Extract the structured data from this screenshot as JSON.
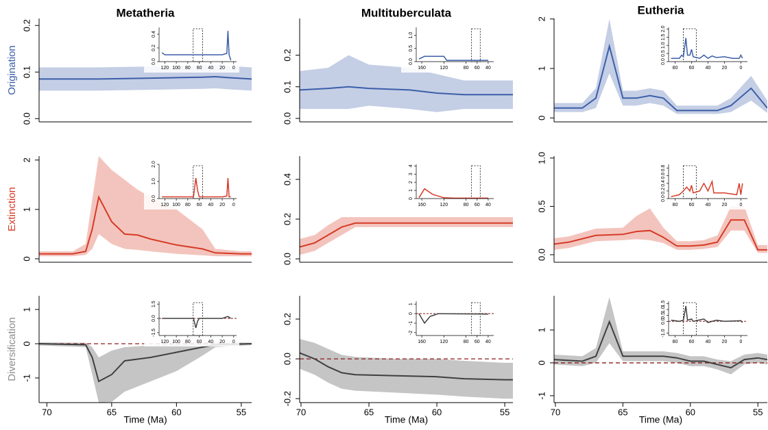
{
  "chart_data": [
    {
      "type": "line",
      "title": "Metatheria",
      "ylabel": "Origination",
      "color": "#3b5ea8",
      "x": [
        70.6,
        68,
        66,
        64,
        62,
        60,
        58,
        57,
        56,
        54.2
      ],
      "values": [
        0.085,
        0.085,
        0.085,
        0.086,
        0.087,
        0.088,
        0.089,
        0.09,
        0.088,
        0.085
      ],
      "lower": [
        0.06,
        0.06,
        0.06,
        0.061,
        0.062,
        0.063,
        0.064,
        0.065,
        0.063,
        0.06
      ],
      "upper": [
        0.11,
        0.11,
        0.11,
        0.111,
        0.112,
        0.113,
        0.114,
        0.115,
        0.113,
        0.11
      ],
      "xlim": [
        70.6,
        54.2
      ],
      "ylim": [
        -0.007,
        0.215
      ],
      "yticks": [
        {
          "value": 0,
          "label": "0.0"
        },
        0.1,
        0.2
      ],
      "inset": {
        "x": [
          125,
          120,
          100,
          60,
          20,
          12,
          10,
          8,
          5
        ],
        "values": [
          0.13,
          0.1,
          0.1,
          0.1,
          0.1,
          0.12,
          0.45,
          0.1,
          0.02
        ],
        "xlim": [
          130,
          -5
        ],
        "ylim": [
          0,
          0.5
        ],
        "xticks": [
          120,
          100,
          80,
          60,
          40,
          20,
          0
        ],
        "yticks": [
          {
            "value": 0,
            "label": "0.0"
          },
          0.2,
          0.4
        ]
      }
    },
    {
      "type": "line",
      "title": "Multituberculata",
      "color": "#3b5ea8",
      "x": [
        70.1,
        68,
        66.5,
        65,
        62,
        60,
        58,
        54.4
      ],
      "values": [
        0.09,
        0.095,
        0.1,
        0.095,
        0.09,
        0.08,
        0.075,
        0.075
      ],
      "lower": [
        0.03,
        0.03,
        0.03,
        0.04,
        0.03,
        0.02,
        0.03,
        0.03
      ],
      "upper": [
        0.15,
        0.16,
        0.2,
        0.17,
        0.16,
        0.14,
        0.12,
        0.12
      ],
      "xlim": [
        70.1,
        54.4
      ],
      "ylim": [
        -0.011,
        0.316
      ],
      "yticks": [
        {
          "value": 0,
          "label": "0.0"
        },
        0.1,
        0.2
      ],
      "inset": {
        "x": [
          165,
          155,
          140,
          120,
          115,
          100,
          60,
          40
        ],
        "values": [
          0.1,
          0.2,
          0.2,
          0.2,
          0.05,
          0.05,
          0.05,
          0.05
        ],
        "xlim": [
          170,
          30
        ],
        "ylim": [
          0,
          1.3
        ],
        "xticks": [
          160,
          120,
          80,
          60,
          40
        ],
        "yticks": [
          {
            "value": 0,
            "label": "0.0"
          },
          0.5,
          {
            "value": 1,
            "label": "1.0"
          }
        ]
      }
    },
    {
      "type": "line",
      "title": "Eutheria",
      "color": "#3b5ea8",
      "x": [
        70.1,
        68,
        67,
        66,
        65,
        64,
        63,
        62,
        61,
        60,
        58,
        57,
        55.5,
        54.3
      ],
      "values": [
        0.2,
        0.2,
        0.4,
        1.45,
        0.4,
        0.4,
        0.45,
        0.4,
        0.15,
        0.15,
        0.15,
        0.25,
        0.6,
        0.2
      ],
      "lower": [
        0.12,
        0.12,
        0.2,
        0.9,
        0.25,
        0.25,
        0.3,
        0.25,
        0.08,
        0.08,
        0.08,
        0.12,
        0.35,
        0.1
      ],
      "upper": [
        0.3,
        0.3,
        0.6,
        2.0,
        0.55,
        0.55,
        0.6,
        0.55,
        0.25,
        0.25,
        0.25,
        0.4,
        0.85,
        0.35
      ],
      "xlim": [
        70.1,
        54.3
      ],
      "ylim": [
        -0.08,
        2.01
      ],
      "yticks": [
        0,
        1,
        2
      ],
      "inset": {
        "x": [
          85,
          75,
          72,
          70,
          67,
          65,
          62,
          60,
          58,
          50,
          45,
          40,
          35,
          30,
          20,
          10,
          2,
          0,
          -2
        ],
        "values": [
          0.2,
          0.2,
          0.4,
          0.3,
          1.45,
          0.4,
          0.4,
          0.75,
          0.3,
          0.2,
          0.4,
          0.2,
          0.35,
          0.25,
          0.3,
          0.2,
          0.2,
          0.4,
          0.2
        ],
        "xlim": [
          88,
          -8
        ],
        "ylim": [
          0,
          2.1
        ],
        "xticks": [
          80,
          60,
          40,
          20,
          0
        ],
        "yticks": [
          {
            "value": 0,
            "label": "0.0"
          },
          0.5,
          {
            "value": 1,
            "label": "1.0"
          },
          1.5,
          {
            "value": 2,
            "label": "2.0"
          }
        ]
      }
    },
    {
      "type": "line",
      "ylabel": "Extinction",
      "color": "#d63a26",
      "x": [
        70.6,
        68,
        67,
        66.5,
        66,
        65,
        64,
        63,
        62,
        60,
        58,
        57,
        55,
        54.2
      ],
      "values": [
        0.1,
        0.1,
        0.15,
        0.6,
        1.25,
        0.75,
        0.5,
        0.48,
        0.4,
        0.28,
        0.2,
        0.12,
        0.1,
        0.1
      ],
      "lower": [
        0.05,
        0.05,
        0.08,
        0.2,
        0.5,
        0.3,
        0.2,
        0.18,
        0.15,
        0.1,
        0.07,
        0.05,
        0.05,
        0.05
      ],
      "upper": [
        0.15,
        0.15,
        0.3,
        1.2,
        2.08,
        1.8,
        1.6,
        1.4,
        1.25,
        1.0,
        0.6,
        0.2,
        0.15,
        0.15
      ],
      "xlim": [
        70.6,
        54.2
      ],
      "ylim": [
        -0.07,
        2.08
      ],
      "yticks": [
        0,
        1,
        2
      ],
      "inset": {
        "x": [
          125,
          70,
          66,
          63,
          60,
          20,
          12,
          10,
          8,
          5
        ],
        "values": [
          0.1,
          0.1,
          1.2,
          0.5,
          0.1,
          0.1,
          0.15,
          1.2,
          0.1,
          0.1
        ],
        "xlim": [
          130,
          -5
        ],
        "ylim": [
          0,
          2
        ],
        "xticks": [
          120,
          100,
          80,
          60,
          40,
          20,
          0
        ],
        "yticks": [
          {
            "value": 0,
            "label": "0.0"
          },
          {
            "value": 1,
            "label": "1.0"
          },
          {
            "value": 2,
            "label": "2.0"
          }
        ]
      }
    },
    {
      "type": "line",
      "color": "#d63a26",
      "x": [
        70.1,
        69,
        68,
        67,
        66,
        60,
        54.4
      ],
      "values": [
        0.06,
        0.08,
        0.12,
        0.16,
        0.18,
        0.18,
        0.18
      ],
      "lower": [
        0.02,
        0.04,
        0.08,
        0.12,
        0.16,
        0.16,
        0.16
      ],
      "upper": [
        0.1,
        0.12,
        0.17,
        0.21,
        0.21,
        0.21,
        0.21
      ],
      "xlim": [
        70.1,
        54.4
      ],
      "ylim": [
        -0.017,
        0.517
      ],
      "yticks": [
        {
          "value": 0,
          "label": "0.0"
        },
        0.2,
        0.4
      ],
      "inset": {
        "x": [
          165,
          155,
          140,
          120,
          100,
          40
        ],
        "values": [
          0.1,
          1.2,
          0.5,
          0.1,
          0.05,
          0.05
        ],
        "xlim": [
          170,
          30
        ],
        "ylim": [
          0,
          4.2
        ],
        "xticks": [
          160,
          120,
          80,
          60,
          40
        ],
        "yticks": [
          0,
          1,
          2,
          3,
          4
        ]
      }
    },
    {
      "type": "line",
      "color": "#d63a26",
      "x": [
        70.1,
        69,
        67,
        65,
        64,
        63,
        62,
        61,
        60,
        59,
        58,
        57,
        56,
        55,
        54.3
      ],
      "values": [
        0.11,
        0.13,
        0.2,
        0.21,
        0.24,
        0.25,
        0.18,
        0.09,
        0.09,
        0.1,
        0.13,
        0.36,
        0.36,
        0.05,
        0.05
      ],
      "lower": [
        0.05,
        0.07,
        0.14,
        0.15,
        0.16,
        0.15,
        0.12,
        0.05,
        0.05,
        0.06,
        0.08,
        0.25,
        0.25,
        0.02,
        0.02
      ],
      "upper": [
        0.17,
        0.19,
        0.27,
        0.28,
        0.4,
        0.48,
        0.28,
        0.14,
        0.14,
        0.15,
        0.2,
        0.5,
        0.5,
        0.1,
        0.1
      ],
      "xlim": [
        70.1,
        54.3
      ],
      "ylim": [
        -0.078,
        1.02
      ],
      "yticks": [
        {
          "value": 0,
          "label": "0.0"
        },
        0.5,
        {
          "value": 1,
          "label": "1.0"
        }
      ],
      "inset": {
        "x": [
          85,
          75,
          70,
          66,
          62,
          60,
          58,
          50,
          45,
          40,
          35,
          33,
          20,
          5,
          2,
          0,
          -2
        ],
        "values": [
          0.05,
          0.1,
          0.2,
          0.3,
          0.2,
          0.35,
          0.15,
          0.2,
          0.4,
          0.2,
          0.45,
          0.15,
          0.15,
          0.1,
          0.4,
          0.1,
          0.4
        ],
        "xlim": [
          88,
          -8
        ],
        "ylim": [
          0,
          0.9
        ],
        "xticks": [
          80,
          60,
          40,
          20,
          0
        ],
        "yticks": [
          {
            "value": 0,
            "label": "0.0"
          },
          0.2,
          0.4,
          0.6,
          0.8
        ]
      }
    },
    {
      "type": "line",
      "ylabel": "Diversification",
      "xlabel": "Time (Ma)",
      "color": "#3f3f3f",
      "reference_line": 0,
      "x": [
        70.6,
        67,
        66.5,
        66,
        65,
        64,
        62,
        60,
        58,
        57,
        54.2
      ],
      "values": [
        0,
        -0.03,
        -0.4,
        -1.1,
        -0.9,
        -0.5,
        -0.4,
        -0.25,
        -0.1,
        -0.03,
        0
      ],
      "lower": [
        -0.05,
        -0.1,
        -0.9,
        -1.72,
        -1.7,
        -1.4,
        -1.1,
        -0.8,
        -0.35,
        -0.1,
        -0.04
      ],
      "upper": [
        0.04,
        0.03,
        -0.1,
        -0.4,
        -0.2,
        -0.1,
        -0.05,
        0,
        0.05,
        0.05,
        0.03
      ],
      "xlim": [
        70.6,
        54.2
      ],
      "ylim": [
        -1.72,
        1.4
      ],
      "yticks": [
        -1,
        0,
        1
      ],
      "xticks": [
        70,
        65,
        60,
        55
      ],
      "inset": {
        "x": [
          125,
          70,
          66,
          63,
          60,
          20,
          10,
          5
        ],
        "values": [
          0,
          0,
          -1,
          -0.3,
          0,
          0,
          0.2,
          0
        ],
        "xlim": [
          130,
          -5
        ],
        "ylim": [
          -1.8,
          1.8
        ],
        "xticks": [
          120,
          100,
          80,
          60,
          40,
          20,
          0
        ],
        "reference_line": 0,
        "yticks": [
          -1.5,
          {
            "value": 0,
            "label": "0.0"
          },
          1.5
        ]
      }
    },
    {
      "type": "line",
      "xlabel": "Time (Ma)",
      "color": "#3f3f3f",
      "reference_line": 0,
      "x": [
        70.1,
        69,
        68,
        67,
        66,
        63,
        60,
        58,
        55,
        54.4
      ],
      "values": [
        0.03,
        0,
        -0.04,
        -0.07,
        -0.08,
        -0.085,
        -0.09,
        -0.1,
        -0.105,
        -0.105
      ],
      "lower": [
        -0.05,
        -0.08,
        -0.12,
        -0.15,
        -0.16,
        -0.17,
        -0.18,
        -0.19,
        -0.2,
        -0.2
      ],
      "upper": [
        0.1,
        0.08,
        0.05,
        0.02,
        0.01,
        0.0,
        0.0,
        -0.01,
        -0.02,
        -0.02
      ],
      "xlim": [
        70.1,
        54.4
      ],
      "ylim": [
        -0.22,
        0.317
      ],
      "yticks": [
        -0.2,
        {
          "value": 0,
          "label": "0.0"
        },
        0.2
      ],
      "xticks": [
        70,
        65,
        60,
        55
      ],
      "inset": {
        "x": [
          165,
          155,
          145,
          130,
          40
        ],
        "values": [
          0,
          -1,
          -0.3,
          0,
          -0.05
        ],
        "xlim": [
          170,
          30
        ],
        "ylim": [
          -2.3,
          1.3
        ],
        "xticks": [
          160,
          120,
          80,
          60,
          40
        ],
        "reference_line": 0,
        "yticks": [
          -2,
          -1,
          0,
          1
        ]
      }
    },
    {
      "type": "line",
      "xlabel": "Time (Ma)",
      "color": "#3f3f3f",
      "reference_line": 0,
      "x": [
        70.1,
        68,
        67,
        66,
        65,
        62,
        61,
        60,
        59,
        58,
        57,
        56,
        55,
        54.3
      ],
      "values": [
        0.1,
        0.05,
        0.2,
        1.25,
        0.2,
        0.2,
        0.15,
        0.05,
        0.05,
        -0.05,
        -0.15,
        0.1,
        0.15,
        0.1
      ],
      "lower": [
        -0.05,
        -0.1,
        0.0,
        0.6,
        0.05,
        0.05,
        0.0,
        -0.1,
        -0.1,
        -0.2,
        -0.35,
        -0.05,
        0.0,
        -0.05
      ],
      "upper": [
        0.25,
        0.2,
        0.45,
        2.0,
        0.35,
        0.35,
        0.3,
        0.2,
        0.2,
        0.1,
        0.05,
        0.25,
        0.3,
        0.25
      ],
      "xlim": [
        70.1,
        54.3
      ],
      "ylim": [
        -1.21,
        2.04
      ],
      "yticks": [
        -1,
        0,
        1
      ],
      "xticks": [
        70,
        65,
        60,
        55
      ],
      "inset": {
        "x": [
          85,
          75,
          70,
          67,
          65,
          60,
          58,
          45,
          40,
          30,
          20,
          0,
          -2
        ],
        "values": [
          0.1,
          0,
          0.1,
          1.3,
          0.1,
          0.2,
          0,
          0.2,
          -0.1,
          0.1,
          0,
          0.05,
          -0.1
        ],
        "xlim": [
          88,
          -8
        ],
        "ylim": [
          -1.2,
          1.7
        ],
        "xticks": [
          80,
          60,
          40,
          20,
          0
        ],
        "reference_line": 0,
        "yticks": [
          {
            "value": -1,
            "label": "-1.0"
          },
          {
            "value": 0,
            "label": "0.0"
          },
          0.5,
          {
            "value": 1,
            "label": "1.0"
          },
          1.5
        ]
      }
    }
  ]
}
